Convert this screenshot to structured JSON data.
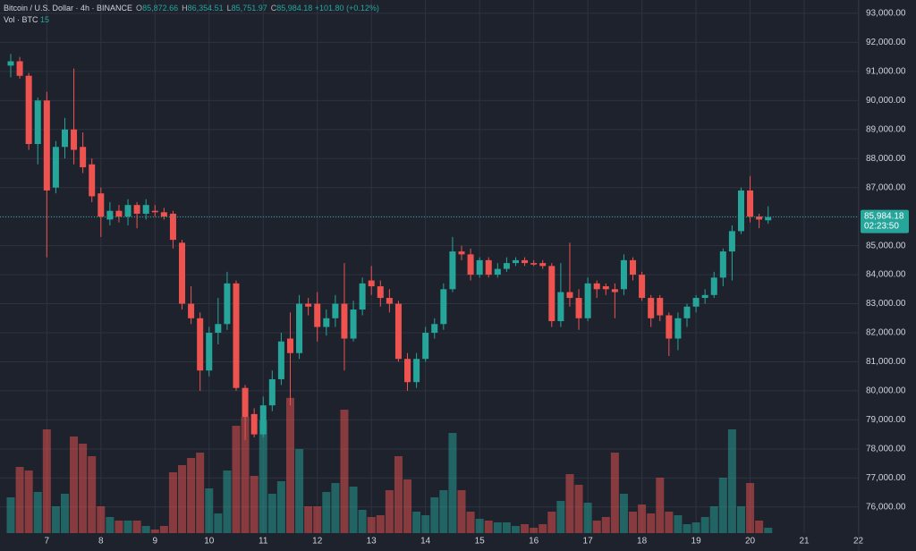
{
  "chart_data": {
    "type": "candlestick",
    "header": {
      "symbol": "Bitcoin / U.S. Dollar · 4h · BINANCE",
      "ohlc": [
        {
          "key": "O",
          "value": "85,872.66"
        },
        {
          "key": "H",
          "value": "86,354.51"
        },
        {
          "key": "L",
          "value": "85,751.97"
        },
        {
          "key": "C",
          "value": "85,984.18"
        }
      ],
      "change": "+101.80 (+0.12%)",
      "volume_name": "Vol · BTC",
      "volume_value": "15"
    },
    "categories": [
      null,
      null,
      null,
      null,
      "7",
      null,
      null,
      null,
      null,
      null,
      "8",
      null,
      null,
      null,
      null,
      null,
      "9",
      null,
      null,
      null,
      null,
      null,
      "10",
      null,
      null,
      null,
      null,
      null,
      "11",
      null,
      null,
      null,
      null,
      null,
      "12",
      null,
      null,
      null,
      null,
      null,
      "13",
      null,
      null,
      null,
      null,
      null,
      "14",
      null,
      null,
      null,
      null,
      null,
      "15",
      null,
      null,
      null,
      null,
      null,
      "16",
      null,
      null,
      null,
      null,
      null,
      "17",
      null,
      null,
      null,
      null,
      null,
      "18",
      null,
      null,
      null,
      null,
      null,
      "19",
      null,
      null,
      null,
      null,
      null,
      "20",
      null,
      null,
      null,
      null,
      null,
      "21",
      null,
      null,
      null,
      null,
      null,
      "22"
    ],
    "open": [
      91200,
      91350,
      90850,
      88500,
      90000,
      87000,
      88400,
      89000,
      88400,
      87800,
      86800,
      85900,
      86200,
      86000,
      86400,
      86100,
      86200,
      86150,
      86100,
      85100,
      83000,
      82500,
      80700,
      82000,
      82300,
      83700,
      80100,
      79200,
      78500,
      79500,
      80400,
      81800,
      81300,
      83000,
      83000,
      82200,
      82500,
      83000,
      81800,
      82800,
      83800,
      83600,
      83200,
      83000,
      81100,
      80300,
      81100,
      82000,
      82300,
      83500,
      84800,
      84700,
      84000,
      84500,
      84000,
      84200,
      84400,
      84500,
      84400,
      84400,
      84300,
      82400,
      83400,
      83200,
      82500,
      83700,
      83600,
      83500,
      83500,
      84500,
      84000,
      83200,
      83200,
      82600,
      81800,
      82500,
      82900,
      83200,
      83300,
      83900,
      84800,
      85500,
      86900,
      86000,
      85872.66,
      null,
      null,
      null,
      null,
      null,
      null,
      null,
      null,
      null,
      null
    ],
    "high": [
      91600,
      91500,
      90950,
      90100,
      90300,
      88600,
      89400,
      91100,
      88900,
      88000,
      87000,
      86500,
      86400,
      86600,
      86500,
      86600,
      86400,
      86300,
      86200,
      85200,
      83600,
      82700,
      82200,
      83200,
      84100,
      83800,
      80200,
      79400,
      79800,
      80700,
      82000,
      82700,
      83300,
      83200,
      83400,
      82800,
      83300,
      84400,
      83100,
      83900,
      84300,
      83800,
      83500,
      83100,
      81300,
      81300,
      82200,
      82500,
      83700,
      85300,
      85000,
      84900,
      84600,
      84600,
      84400,
      84600,
      84600,
      84600,
      84500,
      84500,
      84400,
      84400,
      85100,
      83500,
      83900,
      83800,
      83700,
      83700,
      84700,
      84600,
      84100,
      83300,
      83300,
      82700,
      82700,
      83000,
      83300,
      83500,
      84100,
      84900,
      85700,
      87000,
      87400,
      86100,
      86354.51,
      null,
      null,
      null,
      null,
      null,
      null,
      null,
      null,
      null,
      null
    ],
    "low": [
      90800,
      90750,
      88300,
      87800,
      84600,
      86800,
      88000,
      87800,
      87500,
      86500,
      85300,
      85700,
      85800,
      85700,
      85600,
      85900,
      86000,
      85900,
      84900,
      82800,
      82300,
      80000,
      80500,
      81600,
      82100,
      80000,
      78300,
      78400,
      78400,
      79300,
      80200,
      79500,
      81100,
      82600,
      81700,
      81900,
      82200,
      80700,
      81700,
      82600,
      83300,
      82900,
      82700,
      81000,
      80000,
      80100,
      81000,
      81800,
      82100,
      83400,
      84500,
      83800,
      83900,
      83900,
      83900,
      84100,
      84300,
      84300,
      84300,
      84200,
      82200,
      82200,
      82900,
      82100,
      82400,
      83200,
      83300,
      82500,
      83300,
      83800,
      83100,
      82200,
      82400,
      81200,
      81400,
      82200,
      82700,
      83000,
      83200,
      83600,
      83800,
      85400,
      85800,
      85600,
      85751.97,
      null,
      null,
      null,
      null,
      null,
      null,
      null,
      null,
      null,
      null
    ],
    "close": [
      91350,
      90850,
      88500,
      90000,
      86900,
      88400,
      89000,
      88300,
      87700,
      86700,
      86000,
      86200,
      86000,
      86400,
      86100,
      86400,
      86150,
      86000,
      85200,
      83000,
      82500,
      80700,
      82000,
      82300,
      83700,
      80100,
      79100,
      78500,
      79500,
      80400,
      81700,
      81300,
      83000,
      82900,
      82200,
      82500,
      83000,
      81800,
      82800,
      83700,
      83600,
      83200,
      83000,
      81100,
      80300,
      81100,
      82000,
      82300,
      83500,
      84800,
      84700,
      84000,
      84500,
      84000,
      84200,
      84400,
      84500,
      84400,
      84350,
      84300,
      82400,
      83400,
      83200,
      82500,
      83700,
      83500,
      83500,
      83400,
      84500,
      84000,
      83200,
      82500,
      82600,
      81800,
      82500,
      82900,
      83200,
      83300,
      83900,
      84800,
      85500,
      86900,
      86000,
      85900,
      85984.18,
      null,
      null,
      null,
      null,
      null,
      null,
      null,
      null,
      null,
      null
    ],
    "volume": [
      100,
      185,
      175,
      115,
      290,
      75,
      110,
      270,
      250,
      215,
      75,
      45,
      35,
      35,
      35,
      20,
      10,
      20,
      170,
      190,
      210,
      225,
      125,
      55,
      175,
      300,
      325,
      160,
      315,
      110,
      145,
      378,
      235,
      75,
      75,
      115,
      140,
      345,
      130,
      65,
      45,
      50,
      120,
      215,
      150,
      60,
      50,
      100,
      120,
      280,
      120,
      60,
      40,
      35,
      30,
      30,
      20,
      25,
      15,
      25,
      60,
      90,
      165,
      135,
      85,
      35,
      45,
      225,
      110,
      60,
      80,
      55,
      155,
      60,
      50,
      25,
      30,
      45,
      75,
      155,
      290,
      75,
      140,
      35,
      15,
      null,
      null,
      null,
      null,
      null,
      null,
      null,
      null,
      null,
      null
    ],
    "vlim": [
      0,
      500
    ],
    "ylim": [
      75100,
      93460
    ],
    "yticks": [
      {
        "value": 76000,
        "label": "76,000.00"
      },
      {
        "value": 77000,
        "label": "77,000.00"
      },
      {
        "value": 78000,
        "label": "78,000.00"
      },
      {
        "value": 79000,
        "label": "79,000.00"
      },
      {
        "value": 80000,
        "label": "80,000.00"
      },
      {
        "value": 81000,
        "label": "81,000.00"
      },
      {
        "value": 82000,
        "label": "82,000.00"
      },
      {
        "value": 83000,
        "label": "83,000.00"
      },
      {
        "value": 84000,
        "label": "84,000.00"
      },
      {
        "value": 85000,
        "label": "85,000.00"
      },
      {
        "value": 86000,
        "label": "86,000.00"
      },
      {
        "value": 87000,
        "label": "87,000.00"
      },
      {
        "value": 88000,
        "label": "88,000.00"
      },
      {
        "value": 89000,
        "label": "89,000.00"
      },
      {
        "value": 90000,
        "label": "90,000.00"
      },
      {
        "value": 91000,
        "label": "91,000.00"
      },
      {
        "value": 92000,
        "label": "92,000.00"
      },
      {
        "value": 93000,
        "label": "93,000.00"
      }
    ],
    "last_price": {
      "value": 85984.18,
      "label": "85,984.18",
      "countdown": "02:23:50"
    },
    "up_color": "#26a69a",
    "down_color": "#ef5350",
    "grid": true
  }
}
